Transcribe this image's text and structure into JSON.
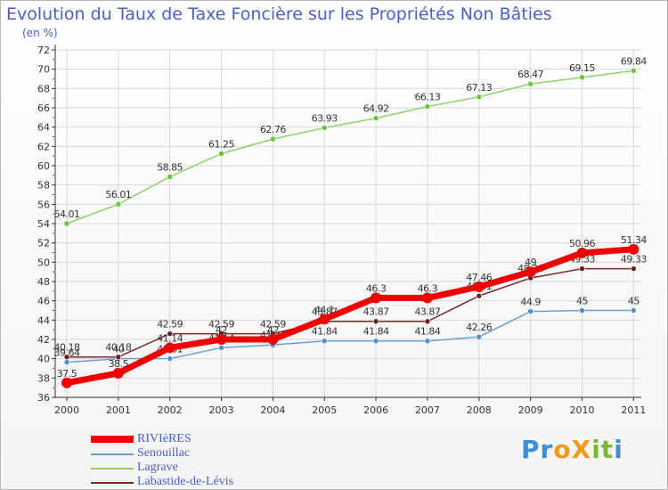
{
  "title": "Evolution du Taux de Taxe Foncière sur les Propriétés Non Bâties",
  "subtitle": "(en %)",
  "logo": {
    "text": "ProXiti",
    "letters": [
      "P",
      "r",
      "o",
      "X",
      "i",
      "t",
      "i"
    ],
    "colors": [
      "#3b8fd6",
      "#3b8fd6",
      "#f29a1f",
      "#f29a1f",
      "#7ab833",
      "#7ab833",
      "#3b8fd6"
    ]
  },
  "chart_data": {
    "type": "line",
    "categories": [
      "2000",
      "2001",
      "2002",
      "2003",
      "2004",
      "2005",
      "2006",
      "2007",
      "2008",
      "2009",
      "2010",
      "2011"
    ],
    "ylim": [
      36,
      72
    ],
    "yticks": [
      36,
      38,
      40,
      42,
      44,
      46,
      48,
      50,
      52,
      54,
      56,
      58,
      60,
      62,
      64,
      66,
      68,
      70,
      72
    ],
    "grid": true,
    "legend_position": "bottom-left",
    "series": [
      {
        "name": "Lagrave",
        "color": "#8fd16a",
        "marker_color": "#6cc23a",
        "values": [
          54.01,
          56.01,
          58.85,
          61.25,
          62.76,
          63.93,
          64.92,
          66.13,
          67.13,
          68.47,
          69.15,
          69.84
        ],
        "labels": [
          "54.01",
          "56.01",
          "58.85",
          "61.25",
          "62.76",
          "63.93",
          "64.92",
          "66.13",
          "67.13",
          "68.47",
          "69.15",
          "69.84"
        ]
      },
      {
        "name": "Senouillac",
        "color": "#6b9fd4",
        "marker_color": "#4c8fd0",
        "values": [
          39.64,
          40.0,
          40.01,
          41.14,
          41.43,
          41.84,
          41.84,
          41.84,
          42.26,
          44.9,
          45.0,
          45.0
        ],
        "labels": [
          "39.64",
          "40",
          "40.01",
          "41.14",
          "41.43",
          "41.84",
          "41.84",
          "41.84",
          "42.26",
          "44.9",
          "45",
          "45"
        ]
      },
      {
        "name": "Labastide-de-Lévis",
        "color": "#7a2a2a",
        "marker_color": "#6b1f1f",
        "values": [
          40.18,
          40.18,
          42.59,
          42.59,
          42.59,
          43.87,
          43.87,
          43.87,
          46.51,
          48.36,
          49.33,
          49.33
        ],
        "labels": [
          "40.18",
          "40.18",
          "42.59",
          "42.59",
          "42.59",
          "43.87",
          "43.87",
          "43.87",
          "46.51",
          "48.36",
          "49.33",
          "49.33"
        ]
      },
      {
        "name": "RIVIèRES",
        "color": "#ee0000",
        "marker_color": "#ee0000",
        "values": [
          37.5,
          38.5,
          41.14,
          42.0,
          42.0,
          44.1,
          46.3,
          46.3,
          47.46,
          49.0,
          50.96,
          51.34
        ],
        "labels": [
          "37.5",
          "38.5",
          "41.14",
          "42",
          "42",
          "44.1",
          "46.3",
          "46.3",
          "47.46",
          "49",
          "50.96",
          "51.34"
        ]
      }
    ],
    "legend_order": [
      "RIVIèRES",
      "Senouillac",
      "Lagrave",
      "Labastide-de-Lévis"
    ]
  }
}
